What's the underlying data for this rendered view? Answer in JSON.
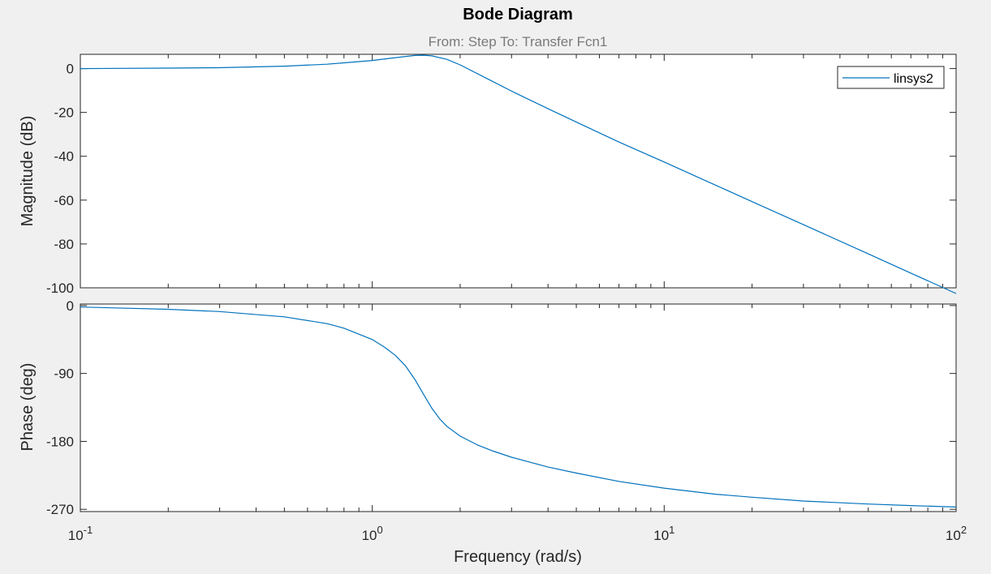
{
  "chart_data": {
    "type": "line",
    "title": "Bode Diagram",
    "subtitle": "From: Step  To: Transfer Fcn1",
    "xlabel": "Frequency  (rad/s)",
    "x_scale": "log",
    "xlim": [
      0.1,
      100
    ],
    "x_ticks": [
      {
        "value": 0.1,
        "base": "10",
        "exp": "-1"
      },
      {
        "value": 1,
        "base": "10",
        "exp": "0"
      },
      {
        "value": 10,
        "base": "10",
        "exp": "1"
      },
      {
        "value": 100,
        "base": "10",
        "exp": "2"
      }
    ],
    "grid": false,
    "legend": {
      "position": "top-right",
      "entries": [
        "linsys2"
      ]
    },
    "series_color": "#0072bd",
    "magnitude": {
      "ylabel": "Magnitude (dB)",
      "ylim": [
        -100,
        6.5
      ],
      "yticks": [
        0,
        -20,
        -40,
        -60,
        -80,
        -100
      ],
      "ytick_labels": [
        "0",
        "-20",
        "-40",
        "-60",
        "-80",
        "-100"
      ],
      "series": [
        {
          "name": "linsys2",
          "x": [
            0.1,
            0.2,
            0.3,
            0.5,
            0.7,
            0.8,
            1.0,
            1.2,
            1.4,
            1.5,
            1.6,
            1.8,
            2.0,
            2.5,
            3.0,
            4.0,
            5.0,
            7.0,
            10,
            15,
            20,
            30,
            50,
            70,
            100
          ],
          "y": [
            0.0,
            0.2,
            0.4,
            1.1,
            2.0,
            2.6,
            3.7,
            5.0,
            6.0,
            6.1,
            5.8,
            4.2,
            1.7,
            -4.9,
            -10.3,
            -18.3,
            -24.4,
            -33.5,
            -42.6,
            -53.2,
            -60.7,
            -71.2,
            -84.5,
            -93.3,
            -102.6
          ]
        }
      ]
    },
    "phase": {
      "ylabel": "Phase (deg)",
      "ylim": [
        -273,
        2
      ],
      "yticks": [
        0,
        -90,
        -180,
        -270
      ],
      "ytick_labels": [
        "0",
        "-90",
        "-180",
        "-270"
      ],
      "series": [
        {
          "name": "linsys2",
          "x": [
            0.1,
            0.2,
            0.3,
            0.5,
            0.7,
            0.8,
            1.0,
            1.1,
            1.2,
            1.3,
            1.4,
            1.5,
            1.6,
            1.7,
            1.8,
            2.0,
            2.3,
            2.6,
            3.0,
            4.0,
            5.0,
            7.0,
            10,
            15,
            20,
            30,
            50,
            70,
            100
          ],
          "y": [
            -2,
            -5,
            -8,
            -15,
            -24,
            -30,
            -45,
            -55,
            -66,
            -80,
            -98,
            -118,
            -136,
            -150,
            -160,
            -173,
            -185,
            -193,
            -201,
            -214,
            -222,
            -233,
            -242,
            -250,
            -254,
            -259,
            -263,
            -265,
            -267
          ]
        }
      ]
    }
  }
}
